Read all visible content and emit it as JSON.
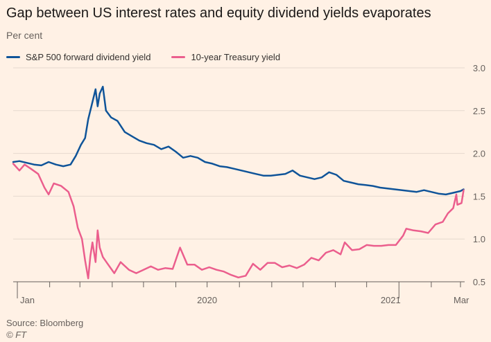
{
  "header": {
    "title": "Gap between US interest rates and equity dividend yields evaporates",
    "subtitle": "Per cent"
  },
  "legend": {
    "items": [
      {
        "label": "S&P 500 forward dividend yield",
        "color": "#0f5499"
      },
      {
        "label": "10-year Treasury yield",
        "color": "#eb5e8d"
      }
    ]
  },
  "footer": {
    "source": "Source: Bloomberg",
    "copyright": "© FT"
  },
  "chart_data": {
    "type": "line",
    "title": "Gap between US interest rates and equity dividend yields evaporates",
    "subtitle": "Per cent",
    "xlabel": "",
    "ylabel": "",
    "x_range": [
      "2019-12-28",
      "2021-03-05"
    ],
    "ylim": [
      0.5,
      3.0
    ],
    "y_ticks": [
      0.5,
      1.0,
      1.5,
      2.0,
      2.5,
      3.0
    ],
    "x_tick_labels": [
      {
        "label": "Jan",
        "date": "2020-01-01"
      },
      {
        "label": "2020",
        "date": "2020-07-01"
      },
      {
        "label": "2021",
        "date": "2021-01-01"
      },
      {
        "label": "Mar",
        "date": "2021-03-01"
      }
    ],
    "grid": "horizontal",
    "legend_position": "top-left",
    "series": [
      {
        "name": "S&P 500 forward dividend yield",
        "color": "#0f5499",
        "points": [
          [
            "2019-12-28",
            1.9
          ],
          [
            "2020-01-03",
            1.91
          ],
          [
            "2020-01-10",
            1.89
          ],
          [
            "2020-01-17",
            1.87
          ],
          [
            "2020-01-24",
            1.86
          ],
          [
            "2020-01-31",
            1.9
          ],
          [
            "2020-02-07",
            1.87
          ],
          [
            "2020-02-14",
            1.85
          ],
          [
            "2020-02-21",
            1.87
          ],
          [
            "2020-02-26",
            1.97
          ],
          [
            "2020-03-02",
            2.1
          ],
          [
            "2020-03-06",
            2.18
          ],
          [
            "2020-03-09",
            2.4
          ],
          [
            "2020-03-12",
            2.55
          ],
          [
            "2020-03-16",
            2.75
          ],
          [
            "2020-03-18",
            2.55
          ],
          [
            "2020-03-20",
            2.7
          ],
          [
            "2020-03-23",
            2.78
          ],
          [
            "2020-03-26",
            2.5
          ],
          [
            "2020-03-31",
            2.42
          ],
          [
            "2020-04-06",
            2.38
          ],
          [
            "2020-04-13",
            2.25
          ],
          [
            "2020-04-20",
            2.2
          ],
          [
            "2020-04-27",
            2.15
          ],
          [
            "2020-05-04",
            2.12
          ],
          [
            "2020-05-11",
            2.1
          ],
          [
            "2020-05-18",
            2.05
          ],
          [
            "2020-05-25",
            2.08
          ],
          [
            "2020-06-01",
            2.02
          ],
          [
            "2020-06-08",
            1.95
          ],
          [
            "2020-06-15",
            1.97
          ],
          [
            "2020-06-22",
            1.95
          ],
          [
            "2020-06-29",
            1.9
          ],
          [
            "2020-07-06",
            1.88
          ],
          [
            "2020-07-13",
            1.85
          ],
          [
            "2020-07-20",
            1.84
          ],
          [
            "2020-07-27",
            1.82
          ],
          [
            "2020-08-03",
            1.8
          ],
          [
            "2020-08-10",
            1.78
          ],
          [
            "2020-08-17",
            1.76
          ],
          [
            "2020-08-24",
            1.74
          ],
          [
            "2020-08-31",
            1.74
          ],
          [
            "2020-09-07",
            1.75
          ],
          [
            "2020-09-14",
            1.76
          ],
          [
            "2020-09-21",
            1.8
          ],
          [
            "2020-09-28",
            1.74
          ],
          [
            "2020-10-05",
            1.72
          ],
          [
            "2020-10-12",
            1.7
          ],
          [
            "2020-10-19",
            1.72
          ],
          [
            "2020-10-26",
            1.78
          ],
          [
            "2020-11-02",
            1.75
          ],
          [
            "2020-11-09",
            1.68
          ],
          [
            "2020-11-16",
            1.66
          ],
          [
            "2020-11-23",
            1.64
          ],
          [
            "2020-11-30",
            1.63
          ],
          [
            "2020-12-07",
            1.62
          ],
          [
            "2020-12-14",
            1.6
          ],
          [
            "2020-12-21",
            1.59
          ],
          [
            "2020-12-28",
            1.58
          ],
          [
            "2021-01-04",
            1.57
          ],
          [
            "2021-01-11",
            1.56
          ],
          [
            "2021-01-18",
            1.55
          ],
          [
            "2021-01-25",
            1.57
          ],
          [
            "2021-02-01",
            1.55
          ],
          [
            "2021-02-08",
            1.53
          ],
          [
            "2021-02-15",
            1.52
          ],
          [
            "2021-02-22",
            1.54
          ],
          [
            "2021-03-01",
            1.56
          ],
          [
            "2021-03-04",
            1.58
          ]
        ]
      },
      {
        "name": "10-year Treasury yield",
        "color": "#eb5e8d",
        "points": [
          [
            "2019-12-28",
            1.88
          ],
          [
            "2020-01-03",
            1.8
          ],
          [
            "2020-01-08",
            1.87
          ],
          [
            "2020-01-14",
            1.82
          ],
          [
            "2020-01-21",
            1.76
          ],
          [
            "2020-01-27",
            1.6
          ],
          [
            "2020-01-31",
            1.52
          ],
          [
            "2020-02-05",
            1.65
          ],
          [
            "2020-02-12",
            1.62
          ],
          [
            "2020-02-19",
            1.55
          ],
          [
            "2020-02-24",
            1.38
          ],
          [
            "2020-02-28",
            1.13
          ],
          [
            "2020-03-03",
            1.0
          ],
          [
            "2020-03-06",
            0.75
          ],
          [
            "2020-03-09",
            0.54
          ],
          [
            "2020-03-11",
            0.8
          ],
          [
            "2020-03-13",
            0.96
          ],
          [
            "2020-03-16",
            0.73
          ],
          [
            "2020-03-18",
            1.1
          ],
          [
            "2020-03-20",
            0.9
          ],
          [
            "2020-03-23",
            0.79
          ],
          [
            "2020-03-27",
            0.72
          ],
          [
            "2020-04-03",
            0.6
          ],
          [
            "2020-04-09",
            0.73
          ],
          [
            "2020-04-17",
            0.64
          ],
          [
            "2020-04-24",
            0.6
          ],
          [
            "2020-05-01",
            0.64
          ],
          [
            "2020-05-08",
            0.68
          ],
          [
            "2020-05-15",
            0.64
          ],
          [
            "2020-05-22",
            0.66
          ],
          [
            "2020-05-29",
            0.65
          ],
          [
            "2020-06-05",
            0.9
          ],
          [
            "2020-06-12",
            0.7
          ],
          [
            "2020-06-19",
            0.7
          ],
          [
            "2020-06-26",
            0.64
          ],
          [
            "2020-07-03",
            0.67
          ],
          [
            "2020-07-10",
            0.64
          ],
          [
            "2020-07-17",
            0.62
          ],
          [
            "2020-07-24",
            0.58
          ],
          [
            "2020-07-31",
            0.55
          ],
          [
            "2020-08-07",
            0.57
          ],
          [
            "2020-08-14",
            0.71
          ],
          [
            "2020-08-21",
            0.64
          ],
          [
            "2020-08-28",
            0.72
          ],
          [
            "2020-09-04",
            0.72
          ],
          [
            "2020-09-11",
            0.67
          ],
          [
            "2020-09-18",
            0.69
          ],
          [
            "2020-09-25",
            0.66
          ],
          [
            "2020-10-02",
            0.7
          ],
          [
            "2020-10-09",
            0.78
          ],
          [
            "2020-10-16",
            0.75
          ],
          [
            "2020-10-23",
            0.84
          ],
          [
            "2020-10-30",
            0.87
          ],
          [
            "2020-11-06",
            0.82
          ],
          [
            "2020-11-10",
            0.96
          ],
          [
            "2020-11-17",
            0.87
          ],
          [
            "2020-11-24",
            0.88
          ],
          [
            "2020-12-01",
            0.93
          ],
          [
            "2020-12-08",
            0.92
          ],
          [
            "2020-12-15",
            0.92
          ],
          [
            "2020-12-22",
            0.93
          ],
          [
            "2020-12-29",
            0.93
          ],
          [
            "2021-01-05",
            1.04
          ],
          [
            "2021-01-08",
            1.12
          ],
          [
            "2021-01-15",
            1.1
          ],
          [
            "2021-01-22",
            1.09
          ],
          [
            "2021-01-29",
            1.07
          ],
          [
            "2021-02-05",
            1.17
          ],
          [
            "2021-02-12",
            1.2
          ],
          [
            "2021-02-17",
            1.3
          ],
          [
            "2021-02-22",
            1.36
          ],
          [
            "2021-02-25",
            1.52
          ],
          [
            "2021-02-26",
            1.4
          ],
          [
            "2021-03-02",
            1.42
          ],
          [
            "2021-03-04",
            1.57
          ]
        ]
      }
    ]
  }
}
